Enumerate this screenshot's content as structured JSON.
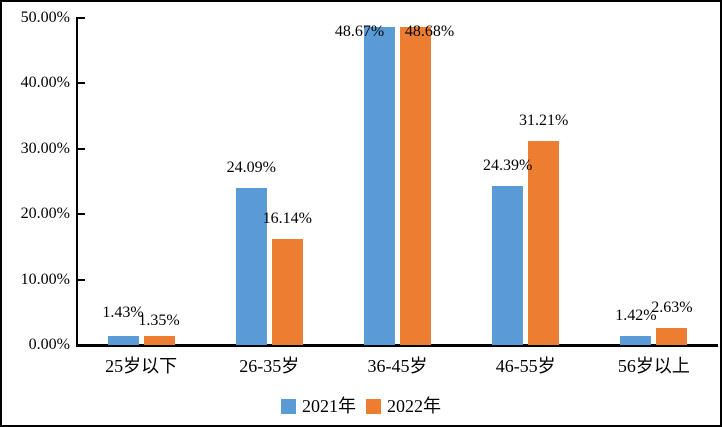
{
  "colors": {
    "series_2021": "#5B9BD5",
    "series_2022": "#ED7D31",
    "axis": "#000000",
    "text": "#000000",
    "background": "#FFFFFF"
  },
  "chart_data": {
    "type": "bar",
    "title": "",
    "categories": [
      "25岁以下",
      "26-35岁",
      "36-45岁",
      "46-55岁",
      "56岁以上"
    ],
    "series": [
      {
        "name": "2021年",
        "color": "#5B9BD5",
        "values": [
          1.43,
          24.09,
          48.67,
          24.39,
          1.42
        ]
      },
      {
        "name": "2022年",
        "color": "#ED7D31",
        "values": [
          1.35,
          16.14,
          48.68,
          31.21,
          2.63
        ]
      }
    ],
    "data_labels": [
      [
        "1.43%",
        "24.09%",
        "48.67%",
        "24.39%",
        "1.42%"
      ],
      [
        "1.35%",
        "16.14%",
        "48.68%",
        "31.21%",
        "2.63%"
      ]
    ],
    "y_axis": {
      "min": 0,
      "max": 50,
      "step": 10,
      "tick_labels": [
        "0.00%",
        "10.00%",
        "20.00%",
        "30.00%",
        "40.00%",
        "50.00%"
      ]
    },
    "x_axis": {
      "tick_labels": [
        "25岁以下",
        "26-35岁",
        "36-45岁",
        "46-55岁",
        "56岁以上"
      ]
    },
    "legend": {
      "position": "bottom",
      "entries": [
        "2021年",
        "2022年"
      ]
    },
    "grid": false
  }
}
